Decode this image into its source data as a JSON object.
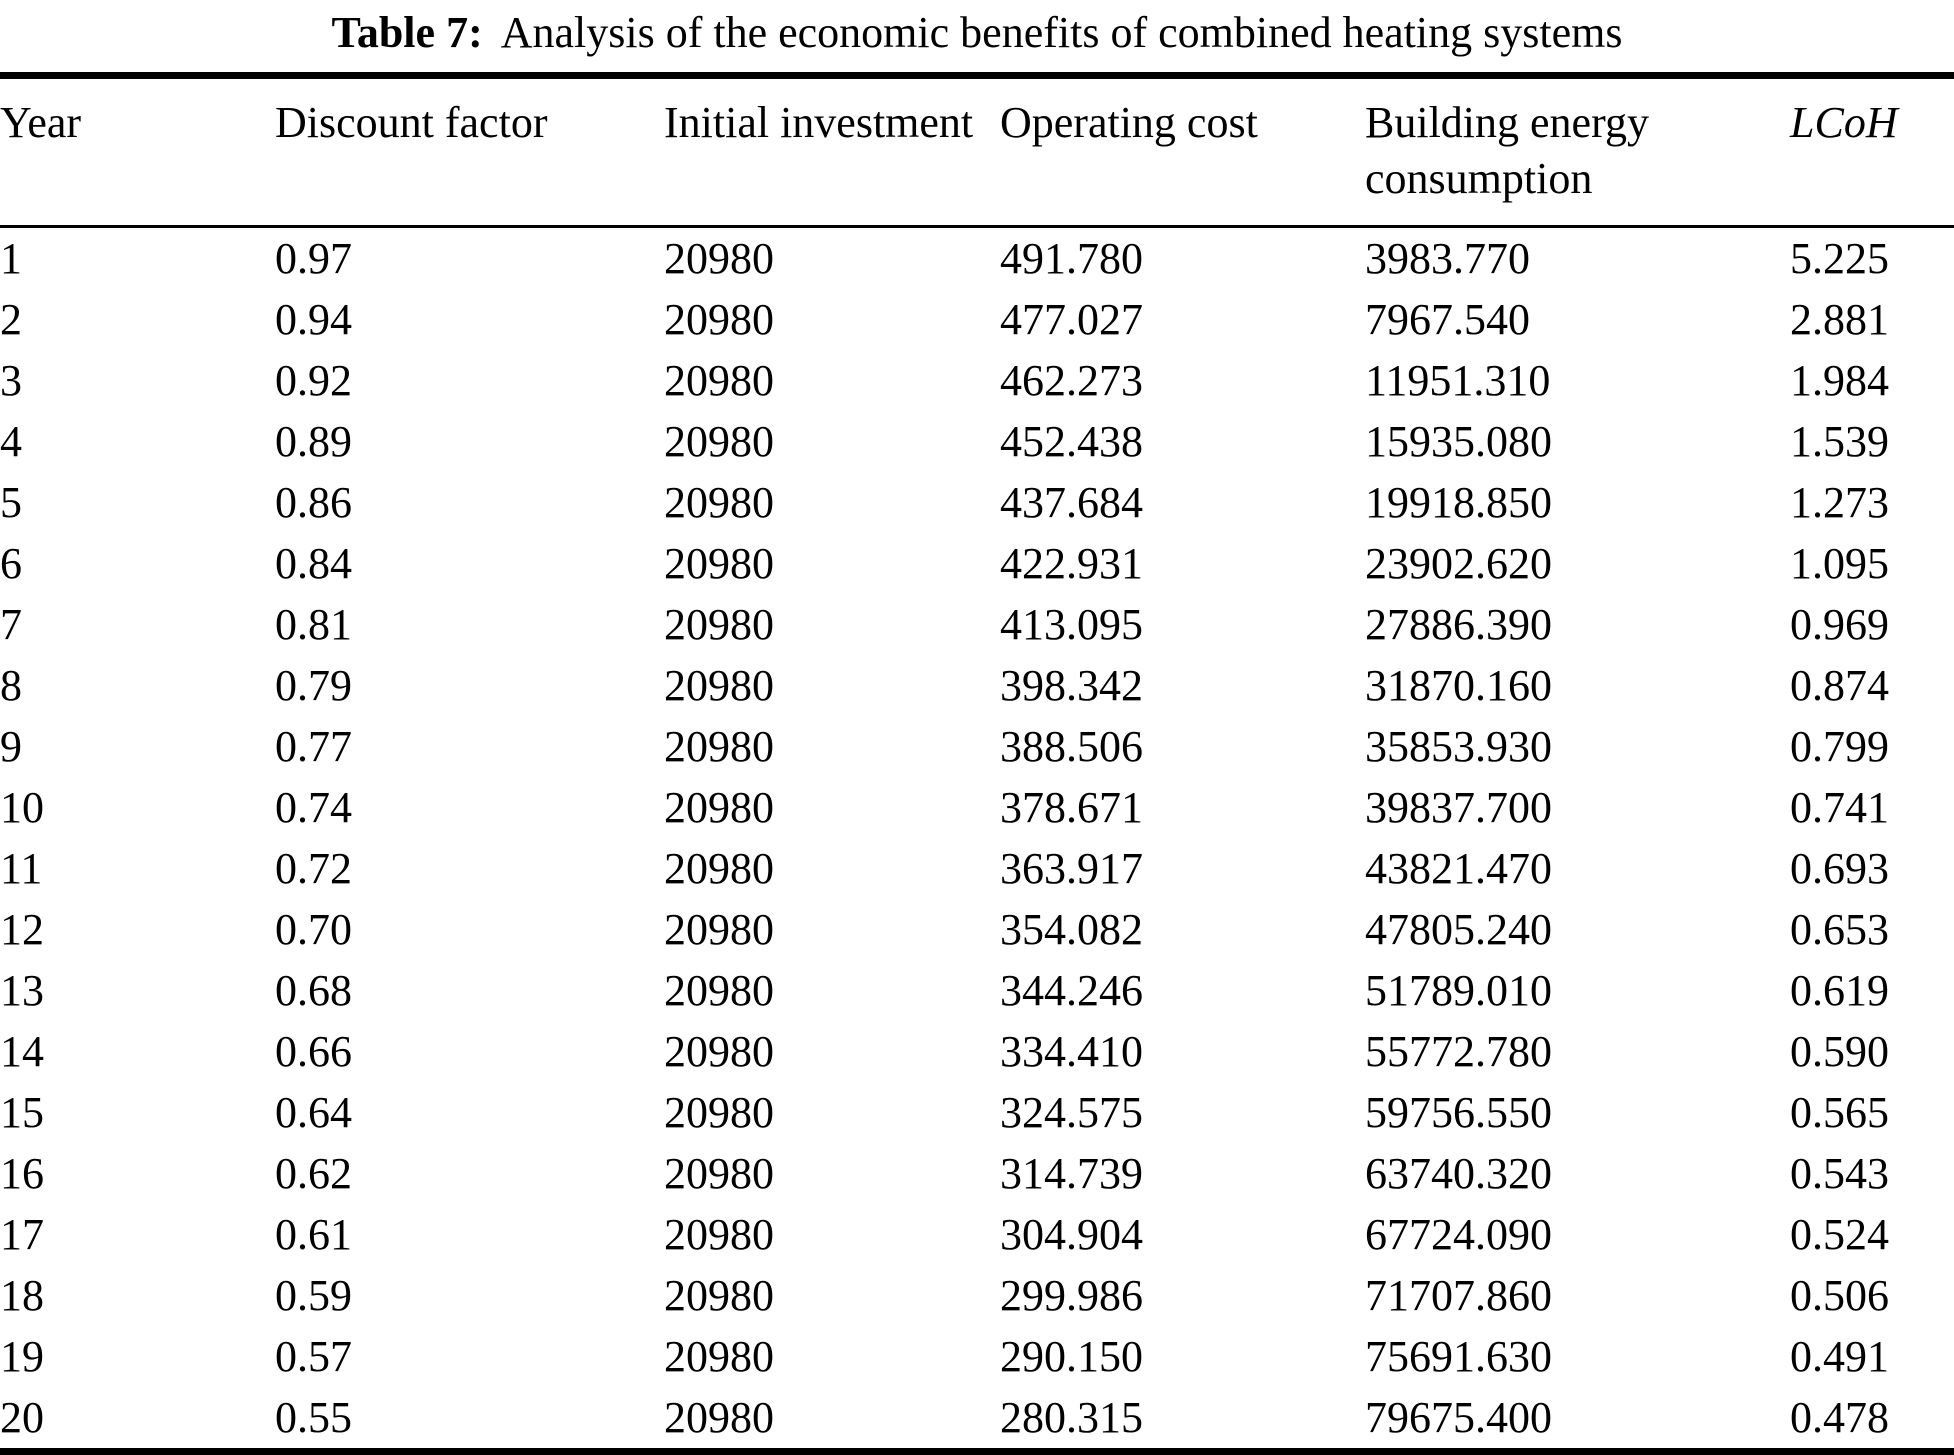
{
  "table": {
    "caption": {
      "label": "Table 7:",
      "text": "Analysis of the economic benefits of combined heating systems"
    },
    "columns": [
      {
        "key": "year",
        "label": "Year",
        "italic": false
      },
      {
        "key": "discount-factor",
        "label": "Discount factor",
        "italic": false
      },
      {
        "key": "initial-investment",
        "label": "Initial investment",
        "italic": false
      },
      {
        "key": "operating-cost",
        "label": "Operating cost",
        "italic": false
      },
      {
        "key": "building-energy-consumption",
        "label": "Building energy consumption",
        "italic": false
      },
      {
        "key": "lcoh",
        "label": "LCoH",
        "italic": true
      }
    ],
    "rows": [
      [
        "1",
        "0.97",
        "20980",
        "491.780",
        "3983.770",
        "5.225"
      ],
      [
        "2",
        "0.94",
        "20980",
        "477.027",
        "7967.540",
        "2.881"
      ],
      [
        "3",
        "0.92",
        "20980",
        "462.273",
        "11951.310",
        "1.984"
      ],
      [
        "4",
        "0.89",
        "20980",
        "452.438",
        "15935.080",
        "1.539"
      ],
      [
        "5",
        "0.86",
        "20980",
        "437.684",
        "19918.850",
        "1.273"
      ],
      [
        "6",
        "0.84",
        "20980",
        "422.931",
        "23902.620",
        "1.095"
      ],
      [
        "7",
        "0.81",
        "20980",
        "413.095",
        "27886.390",
        "0.969"
      ],
      [
        "8",
        "0.79",
        "20980",
        "398.342",
        "31870.160",
        "0.874"
      ],
      [
        "9",
        "0.77",
        "20980",
        "388.506",
        "35853.930",
        "0.799"
      ],
      [
        "10",
        "0.74",
        "20980",
        "378.671",
        "39837.700",
        "0.741"
      ],
      [
        "11",
        "0.72",
        "20980",
        "363.917",
        "43821.470",
        "0.693"
      ],
      [
        "12",
        "0.70",
        "20980",
        "354.082",
        "47805.240",
        "0.653"
      ],
      [
        "13",
        "0.68",
        "20980",
        "344.246",
        "51789.010",
        "0.619"
      ],
      [
        "14",
        "0.66",
        "20980",
        "334.410",
        "55772.780",
        "0.590"
      ],
      [
        "15",
        "0.64",
        "20980",
        "324.575",
        "59756.550",
        "0.565"
      ],
      [
        "16",
        "0.62",
        "20980",
        "314.739",
        "63740.320",
        "0.543"
      ],
      [
        "17",
        "0.61",
        "20980",
        "304.904",
        "67724.090",
        "0.524"
      ],
      [
        "18",
        "0.59",
        "20980",
        "299.986",
        "71707.860",
        "0.506"
      ],
      [
        "19",
        "0.57",
        "20980",
        "290.150",
        "75691.630",
        "0.491"
      ],
      [
        "20",
        "0.55",
        "20980",
        "280.315",
        "79675.400",
        "0.478"
      ]
    ],
    "colors": {
      "text": "#000000",
      "background": "#ffffff",
      "rule": "#000000"
    }
  }
}
